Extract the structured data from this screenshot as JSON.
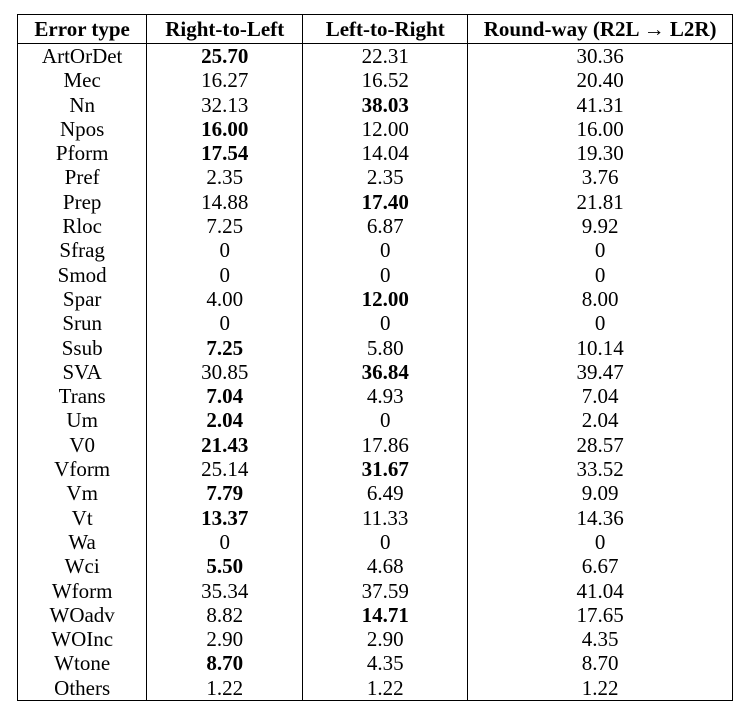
{
  "table": {
    "headers": [
      "Error type",
      "Right-to-Left",
      "Left-to-Right",
      "Round-way (R2L → L2R)"
    ],
    "rows": [
      {
        "cells": [
          "ArtOrDet",
          "25.70",
          "22.31",
          "30.36"
        ],
        "bold": [
          1
        ]
      },
      {
        "cells": [
          "Mec",
          "16.27",
          "16.52",
          "20.40"
        ],
        "bold": []
      },
      {
        "cells": [
          "Nn",
          "32.13",
          "38.03",
          "41.31"
        ],
        "bold": [
          2
        ]
      },
      {
        "cells": [
          "Npos",
          "16.00",
          "12.00",
          "16.00"
        ],
        "bold": [
          1
        ]
      },
      {
        "cells": [
          "Pform",
          "17.54",
          "14.04",
          "19.30"
        ],
        "bold": [
          1
        ]
      },
      {
        "cells": [
          "Pref",
          "2.35",
          "2.35",
          "3.76"
        ],
        "bold": []
      },
      {
        "cells": [
          "Prep",
          "14.88",
          "17.40",
          "21.81"
        ],
        "bold": [
          2
        ]
      },
      {
        "cells": [
          "Rloc",
          "7.25",
          "6.87",
          "9.92"
        ],
        "bold": []
      },
      {
        "cells": [
          "Sfrag",
          "0",
          "0",
          "0"
        ],
        "bold": []
      },
      {
        "cells": [
          "Smod",
          "0",
          "0",
          "0"
        ],
        "bold": []
      },
      {
        "cells": [
          "Spar",
          "4.00",
          "12.00",
          "8.00"
        ],
        "bold": [
          2
        ]
      },
      {
        "cells": [
          "Srun",
          "0",
          "0",
          "0"
        ],
        "bold": []
      },
      {
        "cells": [
          "Ssub",
          "7.25",
          "5.80",
          "10.14"
        ],
        "bold": [
          1
        ]
      },
      {
        "cells": [
          "SVA",
          "30.85",
          "36.84",
          "39.47"
        ],
        "bold": [
          2
        ]
      },
      {
        "cells": [
          "Trans",
          "7.04",
          "4.93",
          "7.04"
        ],
        "bold": [
          1
        ]
      },
      {
        "cells": [
          "Um",
          "2.04",
          "0",
          "2.04"
        ],
        "bold": [
          1
        ]
      },
      {
        "cells": [
          "V0",
          "21.43",
          "17.86",
          "28.57"
        ],
        "bold": [
          1
        ]
      },
      {
        "cells": [
          "Vform",
          "25.14",
          "31.67",
          "33.52"
        ],
        "bold": [
          2
        ]
      },
      {
        "cells": [
          "Vm",
          "7.79",
          "6.49",
          "9.09"
        ],
        "bold": [
          1
        ]
      },
      {
        "cells": [
          "Vt",
          "13.37",
          "11.33",
          "14.36"
        ],
        "bold": [
          1
        ]
      },
      {
        "cells": [
          "Wa",
          "0",
          "0",
          "0"
        ],
        "bold": []
      },
      {
        "cells": [
          "Wci",
          "5.50",
          "4.68",
          "6.67"
        ],
        "bold": [
          1
        ]
      },
      {
        "cells": [
          "Wform",
          "35.34",
          "37.59",
          "41.04"
        ],
        "bold": []
      },
      {
        "cells": [
          "WOadv",
          "8.82",
          "14.71",
          "17.65"
        ],
        "bold": [
          2
        ]
      },
      {
        "cells": [
          "WOInc",
          "2.90",
          "2.90",
          "4.35"
        ],
        "bold": []
      },
      {
        "cells": [
          "Wtone",
          "8.70",
          "4.35",
          "8.70"
        ],
        "bold": [
          1
        ]
      },
      {
        "cells": [
          "Others",
          "1.22",
          "1.22",
          "1.22"
        ],
        "bold": []
      }
    ]
  }
}
